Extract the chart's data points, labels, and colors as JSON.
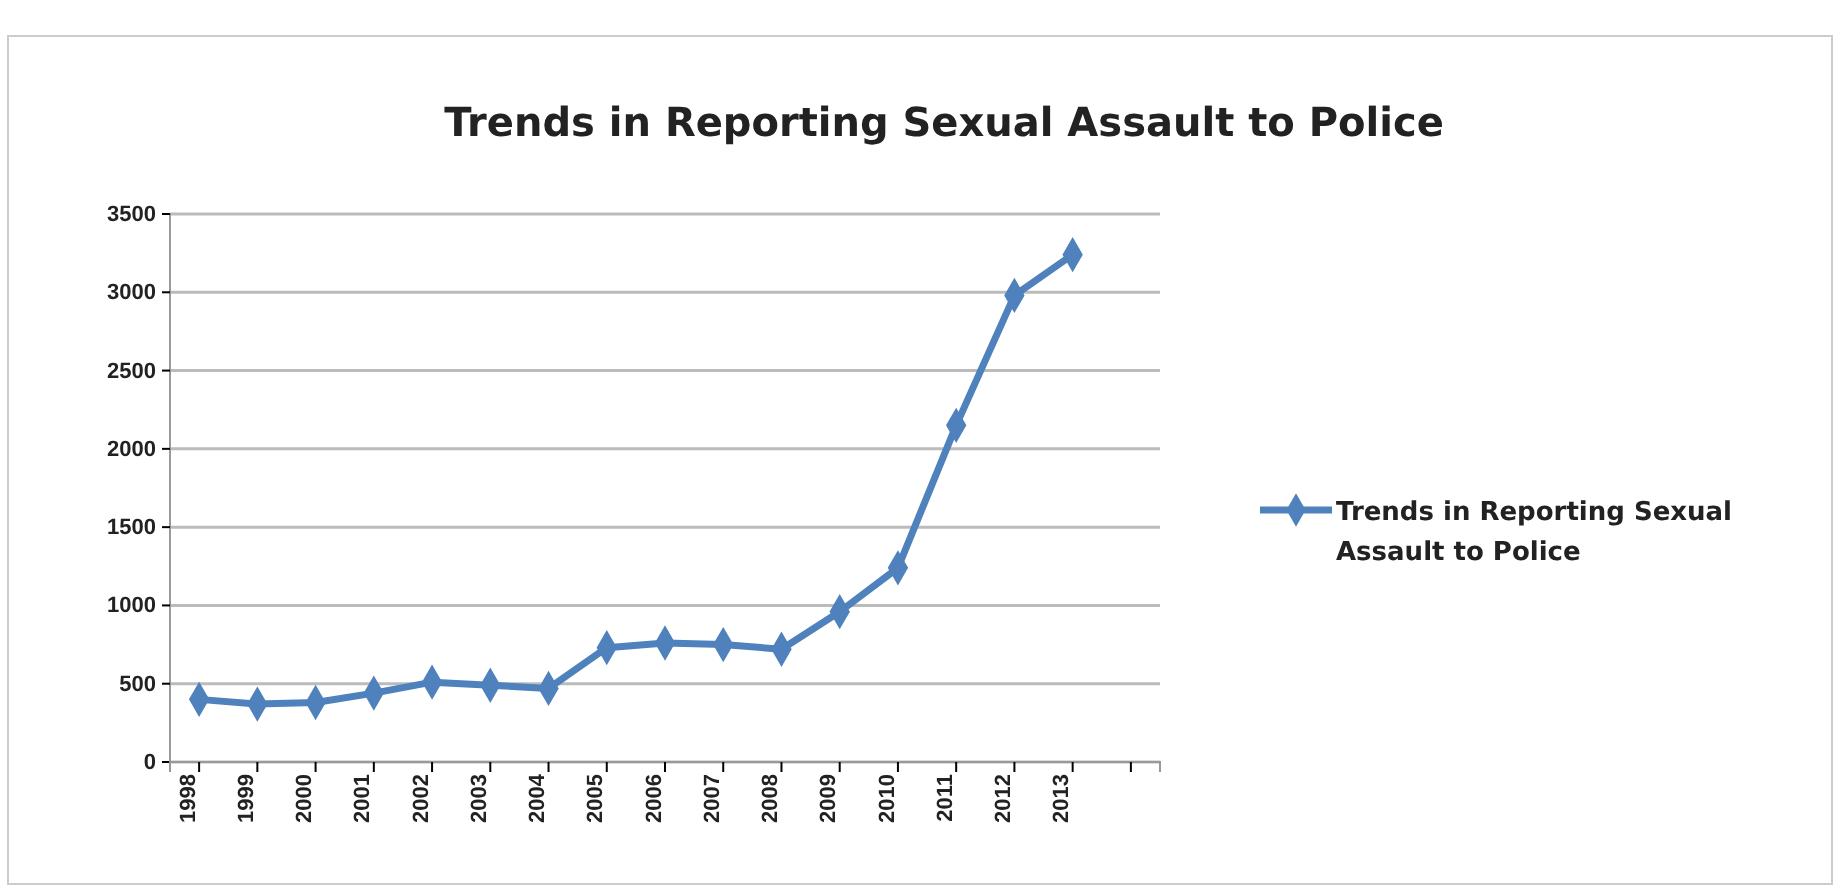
{
  "chart_data": {
    "type": "line",
    "title": "Trends in Reporting Sexual Assault to Police",
    "categories": [
      "1998",
      "1999",
      "2000",
      "2001",
      "2002",
      "2003",
      "2004",
      "2005",
      "2006",
      "2007",
      "2008",
      "2009",
      "2010",
      "2011",
      "2012",
      "2013",
      null
    ],
    "series": [
      {
        "name": "Trends in Reporting Sexual Assault to Police",
        "color": "#4f81bd",
        "values": [
          400,
          370,
          380,
          440,
          510,
          490,
          470,
          730,
          760,
          750,
          720,
          960,
          1240,
          2150,
          2980,
          3240,
          null
        ]
      }
    ],
    "ylim": [
      0,
      3500
    ],
    "yticks": [
      0,
      500,
      1000,
      1500,
      2000,
      2500,
      3000,
      3500
    ],
    "grid": "y",
    "legend": "right",
    "marker": "diamond",
    "line_style": "solid"
  }
}
